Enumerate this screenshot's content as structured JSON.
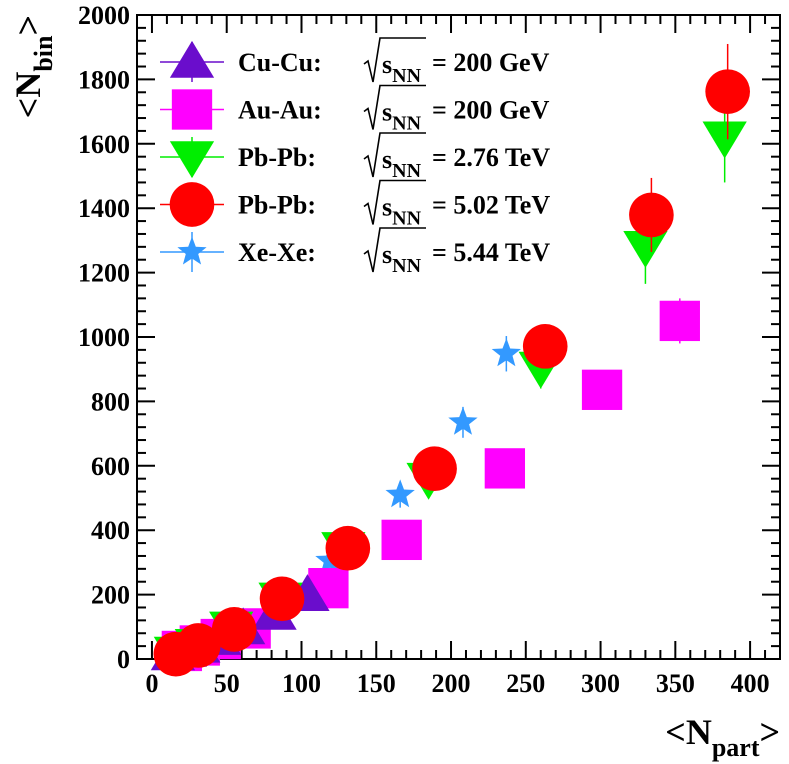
{
  "chart_data": {
    "type": "scatter",
    "xlabel": {
      "main": "N",
      "sub": "part"
    },
    "ylabel": {
      "main": "N",
      "sub": "bin"
    },
    "xlim": [
      -10,
      420
    ],
    "ylim": [
      0,
      2000
    ],
    "xticks": [
      0,
      50,
      100,
      150,
      200,
      250,
      300,
      350,
      400
    ],
    "yticks": [
      0,
      200,
      400,
      600,
      800,
      1000,
      1200,
      1400,
      1600,
      1800,
      2000
    ],
    "grid": false,
    "legend_position": "top-left",
    "series": [
      {
        "name": "Cu-Cu:",
        "energy": "= 200 GeV",
        "sqrt_label": "s",
        "sqrt_sub": "NN",
        "marker": "triangle-up",
        "color": "#6a0dcc",
        "points": [
          {
            "x": 14,
            "y": 14,
            "err": 2
          },
          {
            "x": 22,
            "y": 25,
            "err": 3
          },
          {
            "x": 31,
            "y": 38,
            "err": 4
          },
          {
            "x": 45,
            "y": 62,
            "err": 6
          },
          {
            "x": 61,
            "y": 95,
            "err": 8
          },
          {
            "x": 82,
            "y": 140,
            "err": 12
          },
          {
            "x": 104,
            "y": 198,
            "err": 15
          }
        ]
      },
      {
        "name": "Au-Au:",
        "energy": "= 200 GeV",
        "sqrt_label": "s",
        "sqrt_sub": "NN",
        "marker": "square",
        "color": "#ff00ff",
        "points": [
          {
            "x": 20,
            "y": 25,
            "err": 5
          },
          {
            "x": 32,
            "y": 42,
            "err": 6
          },
          {
            "x": 46,
            "y": 62,
            "err": 8
          },
          {
            "x": 66,
            "y": 95,
            "err": 10
          },
          {
            "x": 118,
            "y": 220,
            "err": 20
          },
          {
            "x": 167,
            "y": 370,
            "err": 30
          },
          {
            "x": 236,
            "y": 592,
            "err": 50
          },
          {
            "x": 301,
            "y": 836,
            "err": 60
          },
          {
            "x": 353,
            "y": 1050,
            "err": 70
          }
        ]
      },
      {
        "name": "Pb-Pb:",
        "energy": "= 2.76 TeV",
        "sqrt_label": "s",
        "sqrt_sub": "NN",
        "marker": "triangle-down",
        "color": "#00ee00",
        "points": [
          {
            "x": 16,
            "y": 20,
            "err": 3
          },
          {
            "x": 30,
            "y": 44,
            "err": 5
          },
          {
            "x": 53,
            "y": 98,
            "err": 10
          },
          {
            "x": 86,
            "y": 188,
            "err": 18
          },
          {
            "x": 128,
            "y": 345,
            "err": 30
          },
          {
            "x": 185,
            "y": 560,
            "err": 55
          },
          {
            "x": 260,
            "y": 905,
            "err": 65
          },
          {
            "x": 330,
            "y": 1280,
            "err": 115
          },
          {
            "x": 383,
            "y": 1620,
            "err": 140
          }
        ]
      },
      {
        "name": "Pb-Pb:",
        "energy": "= 5.02 TeV",
        "sqrt_label": "s",
        "sqrt_sub": "NN",
        "marker": "circle",
        "color": "#ff0000",
        "points": [
          {
            "x": 16,
            "y": 15,
            "err": 3
          },
          {
            "x": 31,
            "y": 42,
            "err": 5
          },
          {
            "x": 55,
            "y": 92,
            "err": 9
          },
          {
            "x": 87,
            "y": 187,
            "err": 18
          },
          {
            "x": 131,
            "y": 344,
            "err": 32
          },
          {
            "x": 189,
            "y": 591,
            "err": 48
          },
          {
            "x": 263,
            "y": 971,
            "err": 65
          },
          {
            "x": 334,
            "y": 1379,
            "err": 115
          },
          {
            "x": 385,
            "y": 1762,
            "err": 148
          }
        ]
      },
      {
        "name": "Xe-Xe:",
        "energy": "= 5.44 TeV",
        "sqrt_label": "s",
        "sqrt_sub": "NN",
        "marker": "star",
        "color": "#3399ff",
        "points": [
          {
            "x": 12,
            "y": 12,
            "err": 2
          },
          {
            "x": 22,
            "y": 30,
            "err": 3
          },
          {
            "x": 37,
            "y": 60,
            "err": 6
          },
          {
            "x": 56,
            "y": 98,
            "err": 10
          },
          {
            "x": 82,
            "y": 170,
            "err": 16
          },
          {
            "x": 119,
            "y": 305,
            "err": 28
          },
          {
            "x": 166,
            "y": 510,
            "err": 40
          },
          {
            "x": 208,
            "y": 735,
            "err": 48
          },
          {
            "x": 237,
            "y": 948,
            "err": 55
          }
        ]
      }
    ]
  }
}
